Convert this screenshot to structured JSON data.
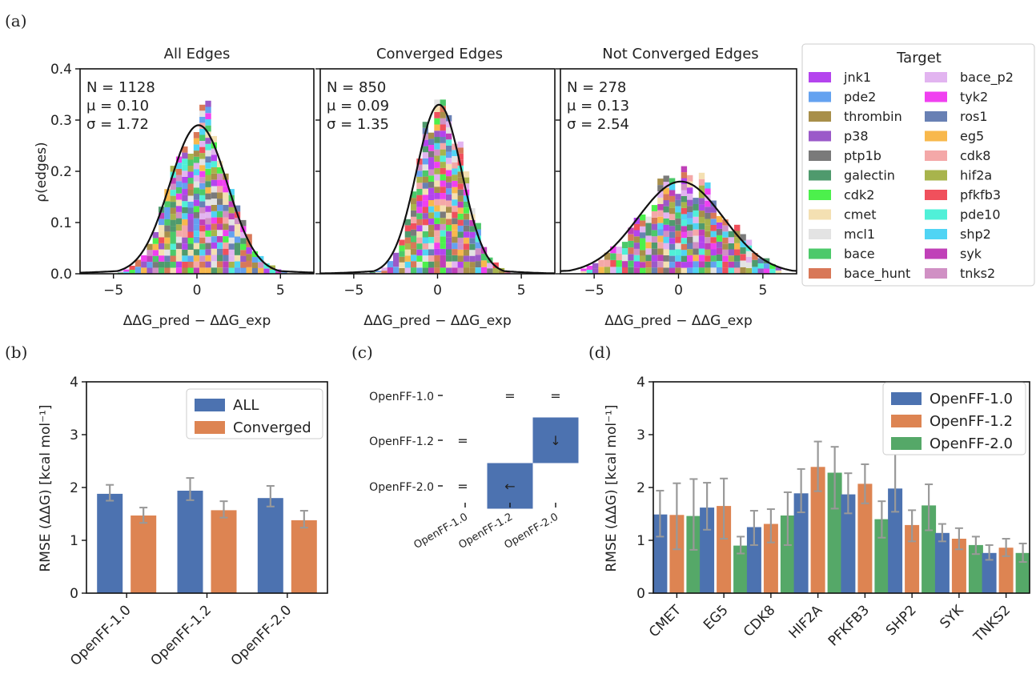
{
  "panel_labels": [
    "(a)",
    "(b)",
    "(c)",
    "(d)"
  ],
  "colors": {
    "targets": {
      "jnk1": "#b444ee",
      "pde2": "#64a2f0",
      "thrombin": "#a88f4a",
      "p38": "#9b59c9",
      "ptp1b": "#7a7a7a",
      "galectin": "#4f9a6d",
      "cdk2": "#4cf04c",
      "cmet": "#f4e0b2",
      "mcl1": "#e3e3e3",
      "bace": "#4cc96a",
      "bace_hunt": "#d87858",
      "bace_p2": "#e2b4f0",
      "tyk2": "#f040f0",
      "ros1": "#6880b4",
      "eg5": "#f8b84c",
      "cdk8": "#f4a8a8",
      "hif2a": "#a8b44c",
      "pfkfb3": "#f0505c",
      "pde10": "#50f0d8",
      "shp2": "#50d4f4",
      "syk": "#c040b8",
      "tnks2": "#d090c4"
    },
    "force_fields": {
      "OpenFF-1.0": "#4c72b0",
      "OpenFF-1.2": "#dd8452",
      "OpenFF-2.0": "#55a868"
    },
    "b_series": {
      "ALL": "#4c72b0",
      "Converged": "#dd8452"
    },
    "error_bar": "#999999",
    "matrix_cell": "#4c72b0"
  },
  "chart_data": [
    {
      "panel": "(a)",
      "type": "histogram",
      "subplots": [
        {
          "title": "All Edges",
          "stats": [
            "N = 1128",
            "μ = 0.10",
            "σ = 1.72"
          ],
          "kde": {
            "mu": 0.1,
            "sigma": 1.72,
            "peak": 0.29
          },
          "max_stack": 0.33
        },
        {
          "title": "Converged Edges",
          "stats": [
            "N = 850",
            "μ = 0.09",
            "σ = 1.35"
          ],
          "kde": {
            "mu": 0.09,
            "sigma": 1.35,
            "peak": 0.33
          },
          "max_stack": 0.34
        },
        {
          "title": "Not Converged Edges",
          "stats": [
            "N = 278",
            "μ = 0.13",
            "σ = 2.54"
          ],
          "kde": {
            "mu": 0.13,
            "sigma": 2.54,
            "peak": 0.18
          },
          "max_stack": 0.21
        }
      ],
      "xlim": [
        -7,
        7
      ],
      "ylim": [
        0,
        0.4
      ],
      "xticks": [
        "−5",
        "0",
        "5"
      ],
      "yticks": [
        "0.0",
        "0.1",
        "0.2",
        "0.3",
        "0.4"
      ],
      "ylabel": "ρ(edges)",
      "xlabel": "ΔΔG_pred − ΔΔG_exp",
      "legend_title": "Target",
      "legend": [
        "jnk1",
        "pde2",
        "thrombin",
        "p38",
        "ptp1b",
        "galectin",
        "cdk2",
        "cmet",
        "mcl1",
        "bace",
        "bace_hunt",
        "bace_p2",
        "tyk2",
        "ros1",
        "eg5",
        "cdk8",
        "hif2a",
        "pfkfb3",
        "pde10",
        "shp2",
        "syk",
        "tnks2"
      ]
    },
    {
      "panel": "(b)",
      "type": "bar",
      "categories": [
        "OpenFF-1.0",
        "OpenFF-1.2",
        "OpenFF-2.0"
      ],
      "series": [
        {
          "name": "ALL",
          "values": [
            1.88,
            1.94,
            1.8
          ],
          "err_low": [
            0.13,
            0.18,
            0.16
          ],
          "err_high": [
            0.17,
            0.24,
            0.23
          ]
        },
        {
          "name": "Converged",
          "values": [
            1.47,
            1.57,
            1.38
          ],
          "err_low": [
            0.14,
            0.14,
            0.14
          ],
          "err_high": [
            0.15,
            0.17,
            0.18
          ]
        }
      ],
      "ylabel": "RMSE (ΔΔG) [kcal mol⁻¹]",
      "ylim": [
        0,
        4
      ],
      "yticks": [
        "0",
        "1",
        "2",
        "3",
        "4"
      ],
      "legend_position": "top-right"
    },
    {
      "panel": "(c)",
      "type": "table",
      "rows": [
        "OpenFF-1.0",
        "OpenFF-1.2",
        "OpenFF-2.0"
      ],
      "cols": [
        "OpenFF-1.0",
        "OpenFF-1.2",
        "OpenFF-2.0"
      ],
      "cells": [
        {
          "row": 0,
          "col": 1,
          "symbol": "=",
          "filled": false
        },
        {
          "row": 0,
          "col": 2,
          "symbol": "=",
          "filled": false
        },
        {
          "row": 1,
          "col": 0,
          "symbol": "=",
          "filled": false
        },
        {
          "row": 1,
          "col": 2,
          "symbol": "↓",
          "filled": true
        },
        {
          "row": 2,
          "col": 0,
          "symbol": "=",
          "filled": false
        },
        {
          "row": 2,
          "col": 1,
          "symbol": "←",
          "filled": true
        }
      ]
    },
    {
      "panel": "(d)",
      "type": "bar",
      "categories": [
        "CMET",
        "EG5",
        "CDK8",
        "HIF2A",
        "PFKFB3",
        "SHP2",
        "SYK",
        "TNKS2"
      ],
      "series": [
        {
          "name": "OpenFF-1.0",
          "values": [
            1.49,
            1.62,
            1.25,
            1.89,
            1.87,
            1.98,
            1.14,
            0.76
          ],
          "err_low": [
            0.42,
            0.42,
            0.34,
            0.36,
            0.36,
            0.44,
            0.16,
            0.13
          ],
          "err_high": [
            0.45,
            0.47,
            0.31,
            0.46,
            0.4,
            0.65,
            0.17,
            0.15
          ]
        },
        {
          "name": "OpenFF-1.2",
          "values": [
            1.48,
            1.65,
            1.31,
            2.39,
            2.07,
            1.29,
            1.03,
            0.86
          ],
          "err_low": [
            0.65,
            0.62,
            0.35,
            0.46,
            0.37,
            0.31,
            0.2,
            0.16
          ],
          "err_high": [
            0.6,
            0.52,
            0.28,
            0.48,
            0.37,
            0.28,
            0.2,
            0.17
          ]
        },
        {
          "name": "OpenFF-2.0",
          "values": [
            1.46,
            0.9,
            1.47,
            2.28,
            1.4,
            1.66,
            0.91,
            0.76
          ],
          "err_low": [
            0.64,
            0.15,
            0.56,
            0.68,
            0.35,
            0.47,
            0.17,
            0.17
          ],
          "err_high": [
            0.7,
            0.17,
            0.44,
            0.49,
            0.34,
            0.4,
            0.16,
            0.18
          ]
        }
      ],
      "ylabel": "RMSE (ΔΔG) [kcal mol⁻¹]",
      "ylim": [
        0,
        4
      ],
      "yticks": [
        "0",
        "1",
        "2",
        "3",
        "4"
      ],
      "legend_position": "top-right"
    }
  ]
}
